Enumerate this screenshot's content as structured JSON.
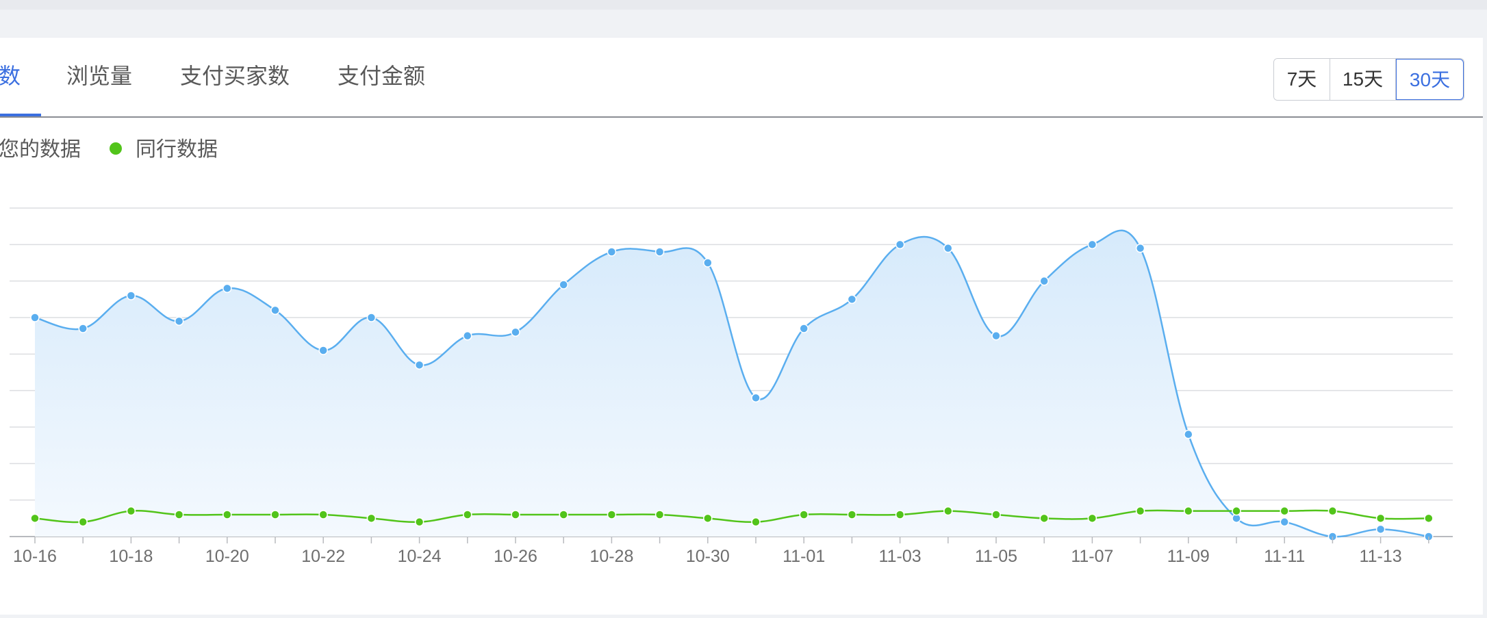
{
  "tabs": [
    {
      "label": "数",
      "active": true
    },
    {
      "label": "浏览量",
      "active": false
    },
    {
      "label": "支付买家数",
      "active": false
    },
    {
      "label": "支付金额",
      "active": false
    }
  ],
  "range_buttons": [
    {
      "label": "7天",
      "active": false
    },
    {
      "label": "15天",
      "active": false
    },
    {
      "label": "30天",
      "active": true
    }
  ],
  "colors": {
    "accent": "#3b6fe0",
    "series_own": "#5aaeef",
    "series_peer": "#52c41a",
    "area_top": "#d6eafb",
    "area_bottom": "#f4f9fe",
    "grid": "#dcdde0"
  },
  "chart_data": {
    "type": "area",
    "x": [
      "10-16",
      "10-17",
      "10-18",
      "10-19",
      "10-20",
      "10-21",
      "10-22",
      "10-23",
      "10-24",
      "10-25",
      "10-26",
      "10-27",
      "10-28",
      "10-29",
      "10-30",
      "10-31",
      "11-01",
      "11-02",
      "11-03",
      "11-04",
      "11-05",
      "11-06",
      "11-07",
      "11-08",
      "11-09",
      "11-10",
      "11-11",
      "11-12",
      "11-13",
      "11-14"
    ],
    "tick_labels": [
      "10-16",
      "10-18",
      "10-20",
      "10-22",
      "10-24",
      "10-26",
      "10-28",
      "10-30",
      "11-01",
      "11-03",
      "11-05",
      "11-07",
      "11-09",
      "11-11",
      "11-13"
    ],
    "ylim": [
      0,
      9
    ],
    "grid_lines": 9,
    "legend_position": "top-left",
    "series": [
      {
        "name": "您的数据",
        "legend_label": "您的数据",
        "values": [
          6.0,
          5.7,
          6.6,
          5.9,
          6.8,
          6.2,
          5.1,
          6.0,
          4.7,
          5.5,
          5.6,
          6.9,
          7.8,
          7.8,
          7.5,
          3.8,
          5.7,
          6.5,
          8.0,
          7.9,
          5.5,
          7.0,
          8.0,
          7.9,
          2.8,
          0.5,
          0.4,
          0.0,
          0.2,
          0.0
        ],
        "area": true
      },
      {
        "name": "同行数据",
        "legend_label": "同行数据",
        "values": [
          0.5,
          0.4,
          0.7,
          0.6,
          0.6,
          0.6,
          0.6,
          0.5,
          0.4,
          0.6,
          0.6,
          0.6,
          0.6,
          0.6,
          0.5,
          0.4,
          0.6,
          0.6,
          0.6,
          0.7,
          0.6,
          0.5,
          0.5,
          0.7,
          0.7,
          0.7,
          0.7,
          0.7,
          0.5,
          0.5
        ],
        "area": false
      }
    ]
  }
}
